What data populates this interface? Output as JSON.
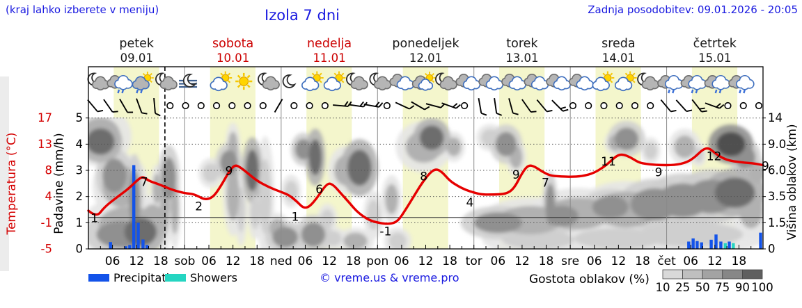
{
  "header": {
    "notice": "(kraj lahko izberete v meniju)",
    "title": "Izola 7 dni",
    "updated": "Zadnja posodobitev: 09.01.2026 - 20:05",
    "link_color": "#1a1ae0"
  },
  "days": [
    {
      "name": "petek",
      "date": "09.01",
      "weekend": false
    },
    {
      "name": "sobota",
      "date": "10.01",
      "weekend": true
    },
    {
      "name": "nedelja",
      "date": "11.01",
      "weekend": true
    },
    {
      "name": "ponedeljek",
      "date": "12.01",
      "weekend": false
    },
    {
      "name": "torek",
      "date": "13.01",
      "weekend": false
    },
    {
      "name": "sreda",
      "date": "14.01",
      "weekend": false
    },
    {
      "name": "četrtek",
      "date": "15.01",
      "weekend": false
    }
  ],
  "axes": {
    "temperature": {
      "title": "Temperatura (°C)",
      "ticks": [
        "17",
        "13",
        "8",
        "4",
        "-1",
        "-5"
      ],
      "color": "#d40000"
    },
    "precipitation": {
      "title": "Padavine (mm/h)",
      "ticks": [
        "5",
        "4",
        "3",
        "2",
        "1",
        "0"
      ]
    },
    "cloud_height": {
      "title": "Višina oblakov (km)",
      "ticks": [
        "14",
        "9.0",
        "6.0",
        "3.5",
        "1.5",
        "0"
      ]
    },
    "time": {
      "hour_labels": [
        "06",
        "12",
        "18"
      ],
      "day_abbrs": [
        "sob",
        "ned",
        "pon",
        "tor",
        "sre",
        "čet"
      ]
    }
  },
  "legend": {
    "precipitation_label": "Precipitation",
    "showers_label": "Showers",
    "copyright": "© vreme.us & vreme.pro",
    "cloud_density_label": "Gostota oblakov (%)",
    "density_ticks": [
      "10",
      "25",
      "50",
      "75",
      "90",
      "100"
    ],
    "density_colors": [
      "#d9d9d9",
      "#bfbfbf",
      "#a3a3a3",
      "#878787",
      "#5f5f5f"
    ],
    "precip_color": "#1353e9",
    "shower_color": "#25d5c1"
  },
  "chart_data": {
    "type": "meteogram",
    "x_axis": {
      "start": "petek 09.01 00:00",
      "end": "četrtek 15.01 24:00",
      "hours_total": 168,
      "tick_every_h": 3,
      "label_every_h": 6
    },
    "temp_scale_anchors": [
      [
        -5,
        0
      ],
      [
        -1,
        1
      ],
      [
        4,
        2
      ],
      [
        8,
        3
      ],
      [
        13,
        4
      ],
      [
        17,
        5
      ]
    ],
    "day_band_hours": [
      6.3,
      17.6
    ],
    "day_band_color": "#f4f6cc",
    "now_line_hour": 19.05,
    "zero_deg_line_v": 1.2,
    "temperature_curve": [
      [
        0,
        1.3
      ],
      [
        2,
        0
      ],
      [
        4,
        2
      ],
      [
        7,
        3.8
      ],
      [
        10,
        5.2
      ],
      [
        12,
        6.4
      ],
      [
        13.5,
        7.1
      ],
      [
        15,
        6.4
      ],
      [
        17,
        6
      ],
      [
        19,
        5.5
      ],
      [
        21,
        5
      ],
      [
        24,
        4.5
      ],
      [
        26,
        4.4
      ],
      [
        27.5,
        4
      ],
      [
        29,
        3.4
      ],
      [
        31,
        3.8
      ],
      [
        33,
        5.6
      ],
      [
        35,
        7.8
      ],
      [
        36.5,
        9.1
      ],
      [
        38,
        8.5
      ],
      [
        40,
        7.4
      ],
      [
        42,
        6.4
      ],
      [
        45,
        5.4
      ],
      [
        48,
        4.7
      ],
      [
        50,
        4.2
      ],
      [
        52,
        3
      ],
      [
        53.5,
        1.8
      ],
      [
        55,
        2
      ],
      [
        57,
        3.8
      ],
      [
        59.5,
        6.1
      ],
      [
        61,
        5.8
      ],
      [
        63,
        4.4
      ],
      [
        65,
        2.8
      ],
      [
        67,
        1
      ],
      [
        70,
        -0.6
      ],
      [
        73,
        -1.1
      ],
      [
        75,
        -1.2
      ],
      [
        77,
        -0.8
      ],
      [
        79,
        1.5
      ],
      [
        81,
        4
      ],
      [
        83,
        6
      ],
      [
        85,
        7.6
      ],
      [
        86.5,
        8.3
      ],
      [
        88,
        7.8
      ],
      [
        90,
        6.4
      ],
      [
        92,
        5.6
      ],
      [
        94,
        5
      ],
      [
        96,
        4.6
      ],
      [
        98,
        4.3
      ],
      [
        101,
        4.3
      ],
      [
        104,
        4.4
      ],
      [
        106,
        5.2
      ],
      [
        108,
        7.6
      ],
      [
        109.5,
        9
      ],
      [
        111,
        8.8
      ],
      [
        113,
        7.8
      ],
      [
        115,
        7.2
      ],
      [
        117,
        7.1
      ],
      [
        120,
        7
      ],
      [
        123,
        7.1
      ],
      [
        126,
        7.6
      ],
      [
        129,
        9
      ],
      [
        131.5,
        10.8
      ],
      [
        133,
        11.1
      ],
      [
        135,
        10.5
      ],
      [
        137,
        9.5
      ],
      [
        139,
        9.2
      ],
      [
        142,
        9
      ],
      [
        146,
        9
      ],
      [
        149,
        9.5
      ],
      [
        151,
        10.5
      ],
      [
        153,
        12
      ],
      [
        154.5,
        12.3
      ],
      [
        156,
        11.3
      ],
      [
        158,
        10.3
      ],
      [
        160,
        9.8
      ],
      [
        163,
        9.5
      ],
      [
        166,
        9.3
      ],
      [
        168,
        9
      ]
    ],
    "temp_curve_color": "#e60000",
    "temp_labels": [
      {
        "t": 1.5,
        "v": 1.02,
        "text": "1"
      },
      {
        "t": 13.9,
        "v": 2.4,
        "text": "7"
      },
      {
        "t": 27.5,
        "v": 1.48,
        "text": "2"
      },
      {
        "t": 35,
        "v": 2.83,
        "text": "9"
      },
      {
        "t": 51.5,
        "v": 1.08,
        "text": "1"
      },
      {
        "t": 57.5,
        "v": 2.12,
        "text": "6"
      },
      {
        "t": 74,
        "v": 0.52,
        "text": "-1"
      },
      {
        "t": 83.5,
        "v": 2.62,
        "text": "8"
      },
      {
        "t": 95,
        "v": 1.62,
        "text": "4"
      },
      {
        "t": 106.5,
        "v": 2.68,
        "text": "9"
      },
      {
        "t": 113.8,
        "v": 2.38,
        "text": "7"
      },
      {
        "t": 129.5,
        "v": 3.18,
        "text": "11"
      },
      {
        "t": 142,
        "v": 2.78,
        "text": "9"
      },
      {
        "t": 155.8,
        "v": 3.38,
        "text": "12"
      },
      {
        "t": 168.6,
        "v": 3.02,
        "text": "9"
      }
    ],
    "precip_bars": [
      {
        "t": 5.5,
        "mm": 0.26,
        "kind": "rain"
      },
      {
        "t": 9.3,
        "mm": 0.1,
        "kind": "rain"
      },
      {
        "t": 10.3,
        "mm": 0.15,
        "kind": "rain"
      },
      {
        "t": 11.3,
        "mm": 3.2,
        "kind": "rain"
      },
      {
        "t": 12.4,
        "mm": 1.0,
        "kind": "rain"
      },
      {
        "t": 13.6,
        "mm": 0.36,
        "kind": "rain"
      },
      {
        "t": 14.6,
        "mm": 0.15,
        "kind": "rain"
      },
      {
        "t": 149.5,
        "mm": 0.28,
        "kind": "rain"
      },
      {
        "t": 150.6,
        "mm": 0.4,
        "kind": "rain"
      },
      {
        "t": 151.6,
        "mm": 0.3,
        "kind": "rain"
      },
      {
        "t": 152.7,
        "mm": 0.25,
        "kind": "rain"
      },
      {
        "t": 155.1,
        "mm": 0.35,
        "kind": "rain"
      },
      {
        "t": 156.3,
        "mm": 0.55,
        "kind": "rain"
      },
      {
        "t": 157.5,
        "mm": 0.28,
        "kind": "rain"
      },
      {
        "t": 158.6,
        "mm": 0.22,
        "kind": "shower"
      },
      {
        "t": 159.6,
        "mm": 0.28,
        "kind": "rain"
      },
      {
        "t": 160.6,
        "mm": 0.22,
        "kind": "shower"
      },
      {
        "t": 167.4,
        "mm": 0.62,
        "kind": "rain"
      }
    ],
    "cloud_shades": [
      "#e6e6e6",
      "#cfcfcf",
      "#b1b1b1",
      "#909090",
      "#6d6d6d",
      "#4f4f4f"
    ],
    "clouds": [
      [
        3,
        4.1,
        3.5,
        0.7,
        4
      ],
      [
        3,
        4.3,
        5,
        1.0,
        2
      ],
      [
        6.5,
        2.8,
        3,
        0.9,
        3
      ],
      [
        8,
        2.4,
        4.5,
        1.1,
        2
      ],
      [
        8,
        0.55,
        6,
        0.7,
        3
      ],
      [
        10,
        0.9,
        7.5,
        1.0,
        2
      ],
      [
        13,
        0.65,
        4,
        0.75,
        4
      ],
      [
        16,
        1.05,
        3,
        0.9,
        2
      ],
      [
        11.5,
        1.9,
        1.4,
        1.5,
        3
      ],
      [
        19,
        1.7,
        1.2,
        1.6,
        2
      ],
      [
        20,
        2.7,
        1.8,
        1.1,
        3
      ],
      [
        17,
        2.3,
        1,
        0.8,
        2
      ],
      [
        21.5,
        1.5,
        1,
        1.3,
        2
      ],
      [
        30.5,
        2.9,
        2,
        0.5,
        1
      ],
      [
        35,
        3.3,
        2.2,
        0.65,
        3
      ],
      [
        36,
        2.1,
        1.6,
        1.4,
        2
      ],
      [
        36,
        3.9,
        1.2,
        0.8,
        2
      ],
      [
        38,
        1.5,
        1,
        1.2,
        1
      ],
      [
        40.8,
        3.0,
        1.6,
        1.1,
        4
      ],
      [
        41.5,
        1.4,
        1.2,
        0.9,
        1
      ],
      [
        44,
        2.0,
        1.5,
        2.0,
        1
      ],
      [
        49,
        0.45,
        3.2,
        0.55,
        3
      ],
      [
        50.5,
        2.2,
        1.6,
        0.55,
        1
      ],
      [
        47,
        0.8,
        2,
        0.5,
        2
      ],
      [
        53.5,
        3.8,
        2,
        0.55,
        3
      ],
      [
        56.5,
        3.5,
        1.6,
        0.95,
        4
      ],
      [
        56,
        0.55,
        3,
        0.65,
        3
      ],
      [
        59.5,
        1.15,
        1.6,
        0.5,
        1
      ],
      [
        61,
        0.4,
        2,
        0.4,
        1
      ],
      [
        64,
        3.0,
        2.8,
        0.8,
        2
      ],
      [
        67.5,
        3.1,
        3,
        0.95,
        4
      ],
      [
        66.5,
        0.3,
        3,
        0.45,
        2
      ],
      [
        71,
        1.3,
        1.6,
        0.8,
        1
      ],
      [
        75.5,
        1.9,
        1.6,
        0.8,
        2
      ],
      [
        77,
        0.3,
        2.2,
        0.45,
        1
      ],
      [
        85.5,
        4.25,
        3,
        0.65,
        4
      ],
      [
        83.5,
        3.9,
        4.5,
        0.85,
        2
      ],
      [
        91,
        3.9,
        1.8,
        0.5,
        2
      ],
      [
        100,
        4.25,
        2.2,
        0.45,
        1
      ],
      [
        104,
        4.0,
        2.6,
        0.65,
        3
      ],
      [
        106.5,
        3.5,
        1.6,
        0.6,
        2
      ],
      [
        115,
        1.7,
        1.2,
        1.1,
        3
      ],
      [
        102,
        1.0,
        6,
        0.55,
        3
      ],
      [
        110,
        1.1,
        8,
        0.75,
        2
      ],
      [
        118,
        1.25,
        4,
        0.55,
        3
      ],
      [
        122,
        1.35,
        8,
        0.85,
        2
      ],
      [
        130,
        1.6,
        4.5,
        0.6,
        3
      ],
      [
        134,
        1.5,
        8,
        0.95,
        2
      ],
      [
        141,
        1.7,
        6,
        0.85,
        3
      ],
      [
        148,
        1.85,
        6.5,
        0.9,
        3
      ],
      [
        155,
        2.0,
        6,
        0.9,
        3
      ],
      [
        161,
        2.15,
        5,
        0.8,
        4
      ],
      [
        150,
        0.55,
        13,
        0.65,
        1
      ],
      [
        132,
        0.4,
        11,
        0.55,
        1
      ],
      [
        112,
        0.35,
        9,
        0.5,
        1
      ],
      [
        165,
        1.5,
        3,
        1.0,
        2
      ],
      [
        134,
        4.2,
        3,
        0.6,
        3
      ],
      [
        131,
        4.05,
        1.6,
        0.4,
        2
      ],
      [
        140,
        3.75,
        1.6,
        0.45,
        1
      ],
      [
        148.5,
        3.9,
        2.6,
        0.6,
        2
      ],
      [
        152,
        3.6,
        1.2,
        0.4,
        1
      ],
      [
        160,
        4.0,
        3.6,
        0.65,
        5
      ],
      [
        163.5,
        3.5,
        2.6,
        0.6,
        3
      ],
      [
        166.5,
        2.9,
        2,
        0.55,
        2
      ]
    ],
    "wind_symbols": [
      {
        "k": "b",
        "a": 50,
        "n": 1
      },
      {
        "k": "b",
        "a": 55,
        "n": 1
      },
      {
        "k": "b",
        "a": 60,
        "n": 1
      },
      {
        "k": "b",
        "a": 70,
        "n": 1
      },
      {
        "k": "b",
        "a": 85,
        "n": 1
      },
      {
        "k": "c"
      },
      {
        "k": "c"
      },
      {
        "k": "c"
      },
      {
        "k": "c"
      },
      {
        "k": "c"
      },
      {
        "k": "c"
      },
      {
        "k": "c"
      },
      {
        "k": "b",
        "a": -60,
        "n": 0
      },
      {
        "k": "c"
      },
      {
        "k": "c"
      },
      {
        "k": "c"
      },
      {
        "k": "b",
        "a": 5,
        "n": 2
      },
      {
        "k": "b",
        "a": 8,
        "n": 2
      },
      {
        "k": "b",
        "a": 10,
        "n": 2
      },
      {
        "k": "c"
      },
      {
        "k": "b",
        "a": 25,
        "n": 1
      },
      {
        "k": "b",
        "a": 30,
        "n": 1
      },
      {
        "k": "b",
        "a": 15,
        "n": 1
      },
      {
        "k": "b",
        "a": 20,
        "n": 2
      },
      {
        "k": "c"
      },
      {
        "k": "b",
        "a": 80,
        "n": 1
      },
      {
        "k": "b",
        "a": 82,
        "n": 1
      },
      {
        "k": "b",
        "a": 75,
        "n": 1
      },
      {
        "k": "b",
        "a": 55,
        "n": 1
      },
      {
        "k": "b",
        "a": 50,
        "n": 1
      },
      {
        "k": "b",
        "a": 45,
        "n": 2
      },
      {
        "k": "c"
      },
      {
        "k": "c"
      },
      {
        "k": "c"
      },
      {
        "k": "c"
      },
      {
        "k": "c"
      },
      {
        "k": "c"
      },
      {
        "k": "b",
        "a": 50,
        "n": 1
      },
      {
        "k": "b",
        "a": 48,
        "n": 1
      },
      {
        "k": "b",
        "a": 52,
        "n": 2
      },
      {
        "k": "b",
        "a": 20,
        "n": 2
      },
      {
        "k": "c"
      },
      {
        "k": "c"
      },
      {
        "k": "c"
      }
    ],
    "weather_icons": [
      {
        "t": 2.3,
        "type": "moon-cloud"
      },
      {
        "t": 7.8,
        "type": "cloud-rain"
      },
      {
        "t": 13.5,
        "type": "sun-cloud-rain"
      },
      {
        "t": 19.2,
        "type": "moon-cloud"
      },
      {
        "t": 24.8,
        "type": "moon-fog"
      },
      {
        "t": 32.9,
        "type": "sun-cloud"
      },
      {
        "t": 38.7,
        "type": "sun"
      },
      {
        "t": 44.7,
        "type": "moon-cloud"
      },
      {
        "t": 49.9,
        "type": "moon"
      },
      {
        "t": 55.7,
        "type": "sun-cloud"
      },
      {
        "t": 61.2,
        "type": "sun-cloud"
      },
      {
        "t": 66.7,
        "type": "moon-cloud"
      },
      {
        "t": 72.5,
        "type": "moon-cloud"
      },
      {
        "t": 78,
        "type": "clouds"
      },
      {
        "t": 83.4,
        "type": "cloud-sun"
      },
      {
        "t": 88.9,
        "type": "moon-cloud"
      },
      {
        "t": 94.5,
        "type": "clouds"
      },
      {
        "t": 100.2,
        "type": "clouds"
      },
      {
        "t": 105.9,
        "type": "clouds"
      },
      {
        "t": 111.5,
        "type": "clouds"
      },
      {
        "t": 117,
        "type": "clouds"
      },
      {
        "t": 122.7,
        "type": "clouds"
      },
      {
        "t": 128.1,
        "type": "sun-cloud"
      },
      {
        "t": 133.7,
        "type": "sun-cloud"
      },
      {
        "t": 139.2,
        "type": "moon-cloud"
      },
      {
        "t": 144.9,
        "type": "cloud-rain"
      },
      {
        "t": 150.7,
        "type": "cloud-rain"
      },
      {
        "t": 156.6,
        "type": "cloud-rain"
      },
      {
        "t": 162.6,
        "type": "cloud-rain"
      }
    ]
  }
}
